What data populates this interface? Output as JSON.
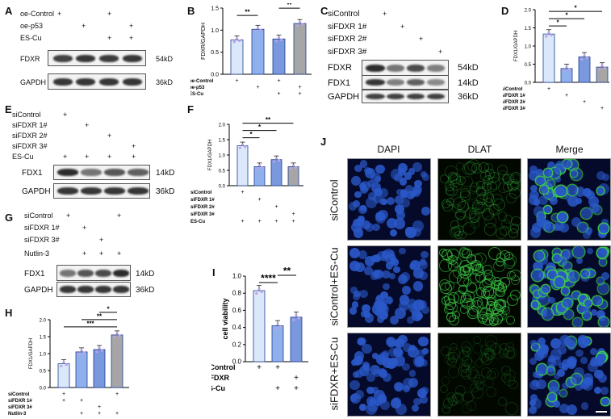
{
  "panels": {
    "A": {
      "letter": "A",
      "rows": [
        "oe-Control",
        "oe-p53",
        "ES-Cu"
      ],
      "signs": [
        [
          "+",
          "",
          "+",
          ""
        ],
        [
          "",
          "+",
          "",
          "+"
        ],
        [
          "",
          "",
          "+",
          "+"
        ]
      ],
      "blots": [
        {
          "name": "FDXR",
          "kd": "54kD",
          "intensity": [
            0.85,
            0.9,
            0.88,
            0.9
          ]
        },
        {
          "name": "GAPDH",
          "kd": "36kD",
          "intensity": [
            0.9,
            0.9,
            0.9,
            0.9
          ]
        }
      ]
    },
    "B": {
      "letter": "B",
      "rows": [
        "oe-Control",
        "oe-p53",
        "ES-Cu"
      ],
      "signs": [
        [
          "+",
          "",
          "+",
          ""
        ],
        [
          "",
          "+",
          "",
          "+"
        ],
        [
          "",
          "",
          "+",
          "+"
        ]
      ]
    },
    "C": {
      "letter": "C",
      "rows": [
        "siControl",
        "siFDXR 1#",
        "siFDXR 2#",
        "siFDXR 3#"
      ],
      "signs": [
        [
          "+",
          "",
          "",
          ""
        ],
        [
          "",
          "+",
          "",
          ""
        ],
        [
          "",
          "",
          "+",
          ""
        ],
        [
          "",
          "",
          "",
          "+"
        ]
      ],
      "blots": [
        {
          "name": "FDXR",
          "kd": "54kD",
          "intensity": [
            0.95,
            0.6,
            0.8,
            0.55
          ]
        },
        {
          "name": "FDX1",
          "kd": "14kD",
          "intensity": [
            0.9,
            0.55,
            0.7,
            0.5
          ]
        },
        {
          "name": "GAPDH",
          "kd": "36kD",
          "intensity": [
            0.85,
            0.85,
            0.85,
            0.85
          ]
        }
      ]
    },
    "D": {
      "letter": "D",
      "rows": [
        "siControl",
        "siFDXR 1#",
        "siFDXR 2#",
        "siFDXR 3#"
      ],
      "signs": [
        [
          "+",
          "",
          "",
          ""
        ],
        [
          "",
          "+",
          "",
          ""
        ],
        [
          "",
          "",
          "+",
          ""
        ],
        [
          "",
          "",
          "",
          "+"
        ]
      ]
    },
    "E": {
      "letter": "E",
      "rows": [
        "siControl",
        "siFDXR 1#",
        "siFDXR 2#",
        "siFDXR 3#",
        "ES-Cu"
      ],
      "signs": [
        [
          "+",
          "",
          "",
          ""
        ],
        [
          "",
          "+",
          "",
          ""
        ],
        [
          "",
          "",
          "+",
          ""
        ],
        [
          "",
          "",
          "",
          "+"
        ],
        [
          "+",
          "+",
          "+",
          "+"
        ]
      ],
      "blots": [
        {
          "name": "FDX1",
          "kd": "14kD",
          "intensity": [
            0.95,
            0.6,
            0.75,
            0.7
          ]
        },
        {
          "name": "GAPDH",
          "kd": "36kD",
          "intensity": [
            0.9,
            0.9,
            0.9,
            0.9
          ]
        }
      ]
    },
    "F": {
      "letter": "F",
      "rows": [
        "siControl",
        "siFDXR 1#",
        "siFDXR 2#",
        "siFDXR 3#",
        "ES-Cu"
      ],
      "signs": [
        [
          "+",
          "",
          "",
          ""
        ],
        [
          "",
          "+",
          "",
          ""
        ],
        [
          "",
          "",
          "+",
          ""
        ],
        [
          "",
          "",
          "",
          "+"
        ],
        [
          "+",
          "+",
          "+",
          "+"
        ]
      ]
    },
    "G": {
      "letter": "G",
      "rows": [
        "siControl",
        "siFDXR 1#",
        "siFDXR 3#",
        "Nutlin-3"
      ],
      "signs": [
        [
          "+",
          "",
          "",
          "+"
        ],
        [
          "",
          "+",
          "",
          ""
        ],
        [
          "",
          "",
          "+",
          ""
        ],
        [
          "",
          "+",
          "+",
          "+"
        ]
      ],
      "blots": [
        {
          "name": "FDX1",
          "kd": "14kD",
          "intensity": [
            0.6,
            0.75,
            0.8,
            0.95
          ]
        },
        {
          "name": "GAPDH",
          "kd": "36kD",
          "intensity": [
            0.9,
            0.9,
            0.9,
            0.9
          ]
        }
      ]
    },
    "H": {
      "letter": "H",
      "rows": [
        "siControl",
        "siFDXR 1#",
        "siFDXR 3#",
        "Nutlin-3"
      ],
      "signs": [
        [
          "+",
          "",
          "",
          "+"
        ],
        [
          "+",
          "+",
          "",
          ""
        ],
        [
          "",
          "",
          "+",
          ""
        ],
        [
          "",
          "+",
          "+",
          "+"
        ]
      ]
    },
    "I": {
      "letter": "I",
      "rows": [
        "siControl",
        "siFDXR",
        "ES-Cu"
      ],
      "signs": [
        [
          "+",
          "+",
          ""
        ],
        [
          "",
          "",
          "+"
        ],
        [
          "",
          "+",
          "+"
        ]
      ]
    },
    "J": {
      "letter": "J",
      "columns": [
        "DAPI",
        "DLAT",
        "Merge"
      ],
      "rows": [
        "siControl",
        "siControl+ES-Cu",
        "siFDXR+ES-Cu"
      ]
    }
  },
  "chart_data": [
    {
      "panel": "B",
      "type": "bar",
      "ylabel": "FDXR/GAPDH",
      "categories": [
        "1",
        "2",
        "3",
        "4"
      ],
      "values": [
        0.78,
        1.02,
        0.8,
        1.15
      ],
      "ylim": [
        0,
        1.5
      ],
      "yticks": [
        "0.0",
        "0.5",
        "1.0",
        "1.5"
      ],
      "colors": [
        "#dbe8fb",
        "#8fb0ec",
        "#7a98de",
        "#a6a6a6"
      ],
      "significance": [
        {
          "from": 0,
          "to": 1,
          "label": "**"
        },
        {
          "from": 2,
          "to": 3,
          "label": "**"
        }
      ]
    },
    {
      "panel": "D",
      "type": "bar",
      "ylabel": "FDX1/GAPDH",
      "categories": [
        "1",
        "2",
        "3",
        "4"
      ],
      "values": [
        1.33,
        0.38,
        0.7,
        0.42
      ],
      "ylim": [
        0,
        2.0
      ],
      "yticks": [
        "0.0",
        "0.5",
        "1.0",
        "1.5",
        "2.0"
      ],
      "colors": [
        "#dbe8fb",
        "#8fb0ec",
        "#7a98de",
        "#a6a6a6"
      ],
      "significance": [
        {
          "from": 0,
          "to": 1,
          "label": "*"
        },
        {
          "from": 0,
          "to": 2,
          "label": "*"
        },
        {
          "from": 0,
          "to": 3,
          "label": "*"
        }
      ]
    },
    {
      "panel": "F",
      "type": "bar",
      "ylabel": "FDX1/GAPDH",
      "categories": [
        "1",
        "2",
        "3",
        "4"
      ],
      "values": [
        1.3,
        0.62,
        0.85,
        0.62
      ],
      "ylim": [
        0,
        2.0
      ],
      "yticks": [
        "0.0",
        "0.5",
        "1.0",
        "1.5",
        "2.0"
      ],
      "colors": [
        "#dbe8fb",
        "#8fb0ec",
        "#7a98de",
        "#a6a6a6"
      ],
      "significance": [
        {
          "from": 0,
          "to": 1,
          "label": "*"
        },
        {
          "from": 0,
          "to": 2,
          "label": "*"
        },
        {
          "from": 0,
          "to": 3,
          "label": "**"
        }
      ]
    },
    {
      "panel": "H",
      "type": "bar",
      "ylabel": "FDX1/GAPDH",
      "categories": [
        "1",
        "2",
        "3",
        "4"
      ],
      "values": [
        0.7,
        1.05,
        1.12,
        1.55
      ],
      "ylim": [
        0,
        2.0
      ],
      "yticks": [
        "0.0",
        "0.5",
        "1.0",
        "1.5",
        "2.0"
      ],
      "colors": [
        "#dbe8fb",
        "#8fb0ec",
        "#7a98de",
        "#a6a6a6"
      ],
      "significance": [
        {
          "from": 0,
          "to": 3,
          "label": "***"
        },
        {
          "from": 1,
          "to": 3,
          "label": "**"
        },
        {
          "from": 2,
          "to": 3,
          "label": "*"
        }
      ]
    },
    {
      "panel": "I",
      "type": "bar",
      "ylabel": "cell viability",
      "categories": [
        "1",
        "2",
        "3"
      ],
      "values": [
        0.83,
        0.42,
        0.52
      ],
      "ylim": [
        0,
        1.0
      ],
      "yticks": [
        "0.0",
        "0.2",
        "0.4",
        "0.6",
        "0.8",
        "1.0"
      ],
      "colors": [
        "#dbe8fb",
        "#8fb0ec",
        "#7a98de"
      ],
      "significance": [
        {
          "from": 0,
          "to": 1,
          "label": "****"
        },
        {
          "from": 1,
          "to": 2,
          "label": "**"
        }
      ]
    }
  ],
  "colors": {
    "dapi": "#2a58c8",
    "dlat": "#3fd24a",
    "bar_edge": "#1f3f8f"
  }
}
